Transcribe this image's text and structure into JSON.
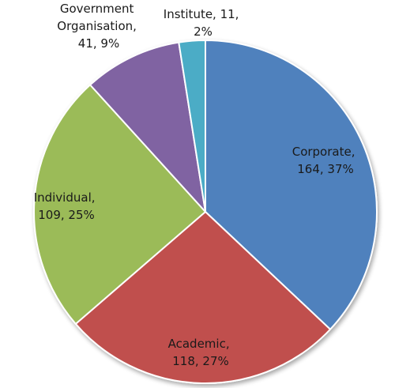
{
  "chart_data": {
    "type": "pie",
    "title": "",
    "slices": [
      {
        "name": "Corporate",
        "value": 164,
        "percent": 37,
        "color": "#4f81bd",
        "label_line1": "Corporate,",
        "label_line2": "164, 37%"
      },
      {
        "name": "Academic",
        "value": 118,
        "percent": 27,
        "color": "#c0504d",
        "label_line1": "Academic,",
        "label_line2": "118, 27%"
      },
      {
        "name": "Individual",
        "value": 109,
        "percent": 25,
        "color": "#9bbb59",
        "label_line1": "Individual,",
        "label_line2": "109, 25%"
      },
      {
        "name": "Government Organisation",
        "value": 41,
        "percent": 9,
        "color": "#8064a2",
        "label_line1": "Government",
        "label_line2": "Organisation,",
        "label_line3": "41, 9%"
      },
      {
        "name": "Institute",
        "value": 11,
        "percent": 2,
        "color": "#4bacc6",
        "label_line1": "Institute, 11,",
        "label_line2": "2%"
      }
    ],
    "start_angle": "top",
    "direction": "clockwise",
    "legend": "none"
  }
}
